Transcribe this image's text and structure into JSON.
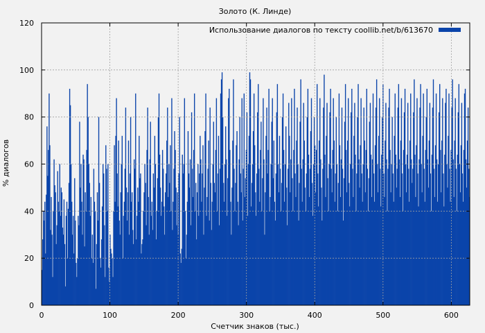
{
  "chart_data": {
    "type": "bar",
    "title": "Золото (К. Линде)",
    "xlabel": "Счетчик знаков (тыс.)",
    "ylabel": "% диалогов",
    "xlim": [
      0,
      627
    ],
    "ylim": [
      0,
      120
    ],
    "xticks": [
      0,
      100,
      200,
      300,
      400,
      500,
      600
    ],
    "yticks": [
      0,
      20,
      40,
      60,
      80,
      100,
      120
    ],
    "grid": true,
    "legend_position": "top-right",
    "colors": {
      "bar": "#0b44aa",
      "grid": "#a0a0a0",
      "background": "#f2f2f2",
      "plot": "#f2f2f2"
    },
    "series": [
      {
        "name": "Использование диалогов по тексту coollib.net/b/613670",
        "x_step": 1,
        "values": [
          15,
          28,
          40,
          36,
          44,
          22,
          47,
          76,
          55,
          66,
          90,
          68,
          32,
          46,
          30,
          12,
          40,
          62,
          51,
          48,
          26,
          34,
          57,
          44,
          40,
          60,
          38,
          50,
          48,
          33,
          30,
          45,
          26,
          8,
          38,
          44,
          20,
          41,
          52,
          92,
          85,
          60,
          44,
          30,
          38,
          22,
          54,
          36,
          18,
          12,
          20,
          38,
          34,
          78,
          50,
          60,
          44,
          30,
          64,
          62,
          25,
          48,
          40,
          66,
          94,
          80,
          60,
          52,
          38,
          46,
          20,
          30,
          18,
          58,
          44,
          40,
          7,
          26,
          48,
          36,
          80,
          52,
          20,
          16,
          28,
          42,
          60,
          56,
          34,
          12,
          68,
          58,
          40,
          60,
          16,
          10,
          30,
          24,
          22,
          20,
          12,
          40,
          68,
          44,
          72,
          88,
          56,
          42,
          70,
          36,
          30,
          48,
          60,
          72,
          20,
          38,
          44,
          58,
          84,
          50,
          36,
          48,
          70,
          30,
          56,
          80,
          44,
          48,
          32,
          26,
          62,
          58,
          90,
          28,
          38,
          50,
          44,
          72,
          54,
          56,
          22,
          26,
          28,
          40,
          48,
          60,
          52,
          34,
          66,
          84,
          46,
          30,
          62,
          78,
          38,
          44,
          32,
          56,
          50,
          72,
          60,
          28,
          40,
          54,
          80,
          90,
          64,
          50,
          38,
          44,
          66,
          58,
          42,
          30,
          48,
          56,
          70,
          84,
          46,
          60,
          52,
          68,
          40,
          88,
          32,
          44,
          58,
          74,
          66,
          50,
          34,
          48,
          30,
          56,
          80,
          22,
          18,
          24,
          64,
          56,
          60,
          88,
          40,
          20,
          30,
          44,
          74,
          56,
          50,
          62,
          34,
          82,
          58,
          46,
          66,
          90,
          40,
          52,
          28,
          48,
          60,
          38,
          56,
          72,
          62,
          44,
          56,
          68,
          30,
          50,
          74,
          90,
          38,
          46,
          58,
          70,
          36,
          84,
          52,
          32,
          44,
          60,
          78,
          52,
          48,
          66,
          88,
          40,
          56,
          72,
          34,
          58,
          90,
          96,
          99,
          80,
          52,
          44,
          60,
          76,
          62,
          38,
          54,
          88,
          92,
          66,
          44,
          30,
          50,
          70,
          96,
          58,
          40,
          52,
          68,
          74,
          44,
          34,
          62,
          80,
          56,
          48,
          88,
          36,
          58,
          90,
          46,
          54,
          66,
          82,
          38,
          60,
          72,
          99,
          96,
          42,
          52,
          60,
          74,
          90,
          68,
          48,
          38,
          56,
          82,
          94,
          58,
          44,
          66,
          78,
          40,
          54,
          88,
          62,
          30,
          48,
          72,
          84,
          56,
          66,
          92,
          40,
          46,
          60,
          78,
          88,
          54,
          70,
          44,
          36,
          56,
          82,
          94,
          60,
          48,
          72,
          58,
          40,
          52,
          80,
          90,
          66,
          44,
          60,
          76,
          50,
          34,
          58,
          86,
          72,
          48,
          62,
          88,
          54,
          40,
          66,
          92,
          56,
          46,
          70,
          84,
          60,
          36,
          52,
          78,
          96,
          58,
          44,
          62,
          86,
          70,
          50,
          40,
          56,
          80,
          92,
          64,
          46,
          58,
          74,
          88,
          52,
          38,
          60,
          80,
          68,
          48,
          66,
          94,
          56,
          42,
          70,
          88,
          62,
          50,
          36,
          58,
          84,
          98,
          64,
          46,
          72,
          86,
          54,
          40,
          60,
          82,
          92,
          58,
          48,
          66,
          88,
          70,
          44,
          56,
          80,
          60,
          40,
          52,
          90,
          68,
          46,
          62,
          84,
          58,
          36,
          54,
          78,
          94,
          66,
          48,
          70,
          88,
          52,
          42,
          60,
          82,
          92,
          58,
          46,
          72,
          86,
          64,
          40,
          56,
          80,
          94,
          62,
          50,
          68,
          88,
          56,
          44,
          60,
          84,
          70,
          48,
          66,
          92,
          58,
          40,
          54,
          78,
          86,
          64,
          46,
          62,
          90,
          56,
          44,
          68,
          84,
          96,
          60,
          48,
          72,
          88,
          58,
          42,
          64,
          80,
          94,
          56,
          46,
          70,
          86,
          62,
          40,
          58,
          84,
          92,
          66,
          48,
          60,
          80,
          56,
          44,
          72,
          90,
          64,
          50,
          58,
          84,
          94,
          62,
          46,
          70,
          88,
          56,
          40,
          66,
          82,
          92,
          60,
          48,
          64,
          86,
          58,
          44,
          70,
          90,
          62,
          52,
          58,
          82,
          96,
          64,
          46,
          68,
          88,
          56,
          42,
          62,
          84,
          94,
          60,
          48,
          72,
          90,
          58,
          44,
          66,
          80,
          92,
          62,
          50,
          70,
          86,
          56,
          40,
          64,
          84,
          96,
          58,
          46,
          68,
          90,
          62,
          44,
          60,
          82,
          94,
          66,
          48,
          70,
          88,
          56,
          42,
          64,
          86,
          92,
          60,
          50,
          72,
          90,
          58,
          44,
          66,
          84,
          96,
          62,
          46,
          70,
          88,
          58,
          40,
          64,
          82,
          94,
          60,
          48,
          68,
          86,
          56,
          44,
          66,
          90,
          92,
          62,
          50,
          70,
          84,
          58,
          46
        ]
      }
    ]
  }
}
